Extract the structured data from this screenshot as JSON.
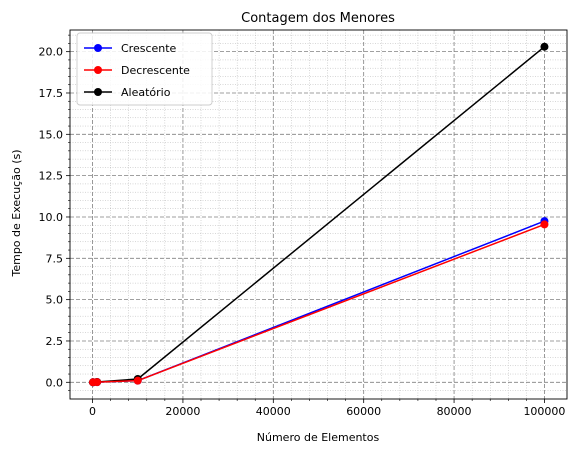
{
  "chart_data": {
    "type": "line",
    "title": "Contagem dos Menores",
    "xlabel": "Número de Elementos",
    "ylabel": "Tempo de Execução (s)",
    "xlim": [
      -4990,
      104990
    ],
    "ylim": [
      -1.01,
      21.31
    ],
    "xticks": [
      0,
      20000,
      40000,
      60000,
      80000,
      100000
    ],
    "xtick_labels": [
      "0",
      "20000",
      "40000",
      "60000",
      "80000",
      "100000"
    ],
    "yticks": [
      0.0,
      2.5,
      5.0,
      7.5,
      10.0,
      12.5,
      15.0,
      17.5,
      20.0
    ],
    "ytick_labels": [
      "0.0",
      "2.5",
      "5.0",
      "7.5",
      "10.0",
      "12.5",
      "15.0",
      "17.5",
      "20.0"
    ],
    "grid": {
      "major": "dashed",
      "minor": "dotted"
    },
    "legend": {
      "placement": "top-left"
    },
    "x": [
      100,
      1000,
      10000,
      100000
    ],
    "series": [
      {
        "name": "Crescente",
        "color": "#0000ff",
        "values": [
          0.0,
          0.01,
          0.1,
          9.75
        ]
      },
      {
        "name": "Decrescente",
        "color": "#ff0000",
        "values": [
          0.0,
          0.01,
          0.1,
          9.55
        ]
      },
      {
        "name": "Aleatório",
        "color": "#000000",
        "values": [
          0.0,
          0.02,
          0.2,
          20.3
        ]
      }
    ]
  }
}
